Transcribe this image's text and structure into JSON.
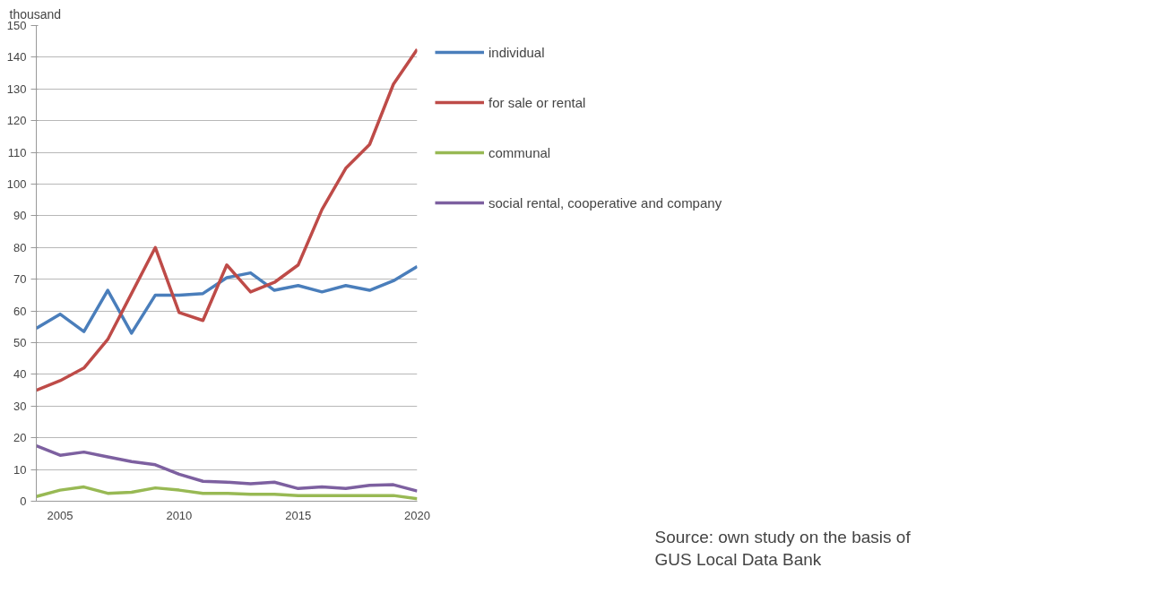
{
  "chart_data": {
    "type": "line",
    "ylabel": "thousand",
    "x": [
      2004,
      2005,
      2006,
      2007,
      2008,
      2009,
      2010,
      2011,
      2012,
      2013,
      2014,
      2015,
      2016,
      2017,
      2018,
      2019,
      2020
    ],
    "xlim": [
      2004,
      2020
    ],
    "xticks": [
      2005,
      2010,
      2015,
      2020
    ],
    "ylim": [
      0,
      150
    ],
    "yticks": [
      0,
      10,
      20,
      30,
      40,
      50,
      60,
      70,
      80,
      90,
      100,
      110,
      120,
      130,
      140,
      150
    ],
    "grid": "y",
    "legend": "right",
    "marker": "none",
    "line_style": "solid",
    "series": [
      {
        "name": "individual",
        "color": "#4a7ebb",
        "values": [
          54.5,
          59,
          53.5,
          66.5,
          53,
          65,
          65,
          65.5,
          70.5,
          72,
          66.5,
          68,
          66,
          68,
          66.5,
          69.5,
          74
        ]
      },
      {
        "name": "for sale or rental",
        "color": "#be4b48",
        "values": [
          35,
          38,
          42,
          51,
          65.5,
          80,
          59.5,
          57,
          74.5,
          66,
          69,
          74.5,
          92,
          105,
          112.5,
          131.5,
          142.5
        ]
      },
      {
        "name": "communal",
        "color": "#98b954",
        "values": [
          1.5,
          3.5,
          4.5,
          2.5,
          2.8,
          4.2,
          3.5,
          2.5,
          2.5,
          2.2,
          2.2,
          1.8,
          1.8,
          1.8,
          1.8,
          1.8,
          0.8
        ]
      },
      {
        "name": "social rental, cooperative and company",
        "color": "#7d60a0",
        "values": [
          17.5,
          14.5,
          15.5,
          14,
          12.5,
          11.5,
          8.5,
          6.3,
          6,
          5.5,
          6,
          4,
          4.5,
          4,
          5,
          5.2,
          3.2
        ]
      }
    ],
    "annotations": [
      "Source: own study on the basis of GUS Local Data Bank"
    ]
  }
}
